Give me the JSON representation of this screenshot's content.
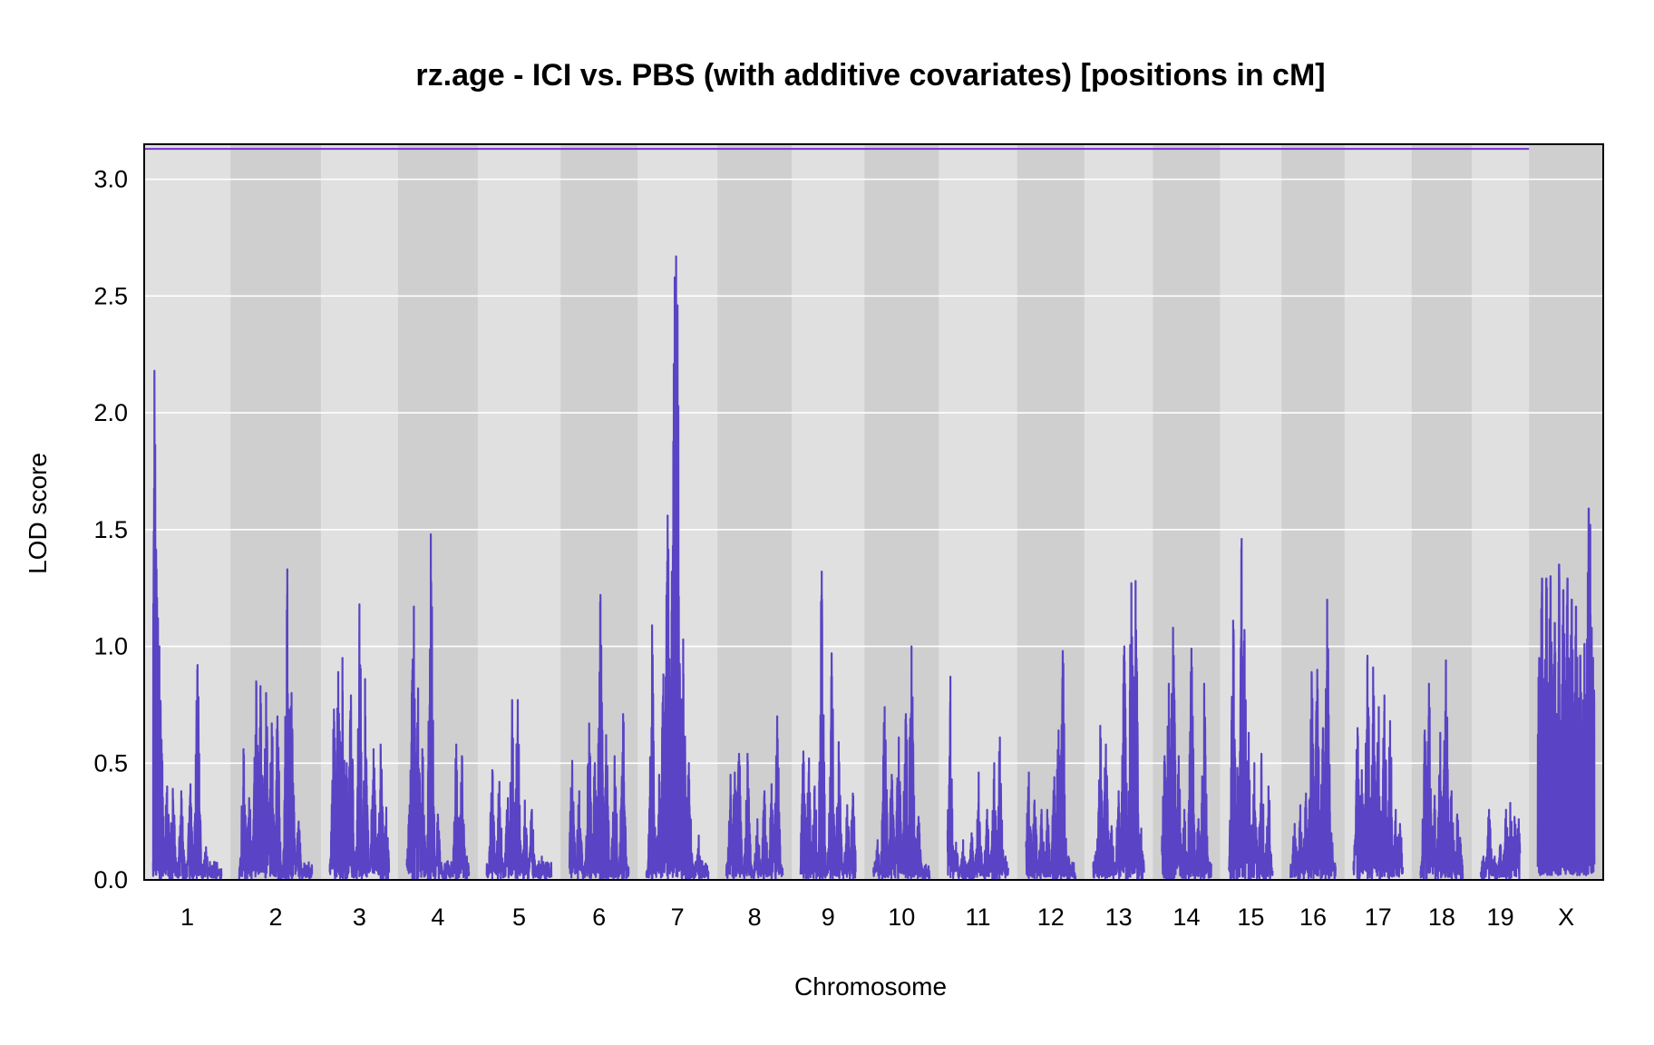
{
  "chart_data": {
    "type": "line",
    "title": "rz.age - ICI vs. PBS (with additive covariates) [positions in cM]",
    "xlabel": "Chromosome",
    "ylabel": "LOD score",
    "ylim": [
      0,
      3.15
    ],
    "yticks": [
      "0.0",
      "0.5",
      "1.0",
      "1.5",
      "2.0",
      "2.5",
      "3.0"
    ],
    "grid": true,
    "legend": "none",
    "colors": {
      "line": "#5a43c4",
      "threshold": "#7a2fd0",
      "band_light": "#e0e0e0",
      "band_dark": "#cfcfcf",
      "grid": "#ffffff"
    },
    "threshold_lod": 3.13,
    "chromosomes": [
      {
        "label": "1",
        "length_cM": 97,
        "peaks": [
          [
            2,
            2.18
          ],
          [
            3,
            1.8
          ],
          [
            5,
            1.33
          ],
          [
            7,
            1.12
          ],
          [
            9,
            1.0
          ],
          [
            12,
            0.6
          ],
          [
            20,
            0.4
          ],
          [
            28,
            0.39
          ],
          [
            40,
            0.38
          ],
          [
            53,
            0.41
          ],
          [
            63,
            0.92
          ],
          [
            75,
            0.14
          ],
          [
            88,
            0.06
          ]
        ]
      },
      {
        "label": "2",
        "length_cM": 103,
        "peaks": [
          [
            6,
            0.56
          ],
          [
            14,
            0.35
          ],
          [
            24,
            0.85
          ],
          [
            30,
            0.83
          ],
          [
            38,
            0.8
          ],
          [
            46,
            0.67
          ],
          [
            54,
            0.7
          ],
          [
            68,
            1.33
          ],
          [
            74,
            0.8
          ],
          [
            84,
            0.25
          ],
          [
            96,
            0.06
          ]
        ]
      },
      {
        "label": "3",
        "length_cM": 84,
        "peaks": [
          [
            6,
            0.73
          ],
          [
            12,
            0.89
          ],
          [
            18,
            0.95
          ],
          [
            24,
            0.5
          ],
          [
            30,
            0.79
          ],
          [
            42,
            1.18
          ],
          [
            50,
            0.86
          ],
          [
            62,
            0.56
          ],
          [
            72,
            0.58
          ],
          [
            80,
            0.31
          ]
        ]
      },
      {
        "label": "4",
        "length_cM": 88,
        "peaks": [
          [
            4,
            0.32
          ],
          [
            8,
            0.9
          ],
          [
            10,
            1.17
          ],
          [
            16,
            0.82
          ],
          [
            22,
            0.56
          ],
          [
            34,
            1.48
          ],
          [
            44,
            0.28
          ],
          [
            58,
            0.08
          ],
          [
            70,
            0.58
          ],
          [
            78,
            0.53
          ],
          [
            85,
            0.1
          ]
        ]
      },
      {
        "label": "5",
        "length_cM": 92,
        "peaks": [
          [
            8,
            0.47
          ],
          [
            18,
            0.42
          ],
          [
            30,
            0.35
          ],
          [
            36,
            0.77
          ],
          [
            44,
            0.77
          ],
          [
            54,
            0.34
          ],
          [
            64,
            0.3
          ],
          [
            78,
            0.1
          ],
          [
            88,
            0.03
          ]
        ]
      },
      {
        "label": "6",
        "length_cM": 84,
        "peaks": [
          [
            4,
            0.51
          ],
          [
            14,
            0.38
          ],
          [
            28,
            0.67
          ],
          [
            36,
            0.5
          ],
          [
            44,
            1.22
          ],
          [
            52,
            0.62
          ],
          [
            64,
            0.53
          ],
          [
            76,
            0.71
          ]
        ]
      },
      {
        "label": "7",
        "length_cM": 88,
        "peaks": [
          [
            8,
            1.09
          ],
          [
            18,
            0.45
          ],
          [
            24,
            0.88
          ],
          [
            30,
            1.56
          ],
          [
            36,
            1.32
          ],
          [
            40,
            2.58
          ],
          [
            42,
            2.67
          ],
          [
            44,
            2.46
          ],
          [
            52,
            1.03
          ],
          [
            60,
            0.5
          ],
          [
            74,
            0.19
          ],
          [
            84,
            0.05
          ]
        ]
      },
      {
        "label": "8",
        "length_cM": 80,
        "peaks": [
          [
            6,
            0.45
          ],
          [
            12,
            0.46
          ],
          [
            18,
            0.54
          ],
          [
            30,
            0.54
          ],
          [
            44,
            0.26
          ],
          [
            54,
            0.38
          ],
          [
            64,
            0.41
          ],
          [
            72,
            0.7
          ]
        ]
      },
      {
        "label": "9",
        "length_cM": 78,
        "peaks": [
          [
            4,
            0.55
          ],
          [
            12,
            0.52
          ],
          [
            20,
            0.4
          ],
          [
            30,
            1.32
          ],
          [
            44,
            0.97
          ],
          [
            54,
            0.59
          ],
          [
            66,
            0.32
          ],
          [
            74,
            0.37
          ]
        ]
      },
      {
        "label": "10",
        "length_cM": 80,
        "peaks": [
          [
            6,
            0.17
          ],
          [
            16,
            0.74
          ],
          [
            26,
            0.45
          ],
          [
            36,
            0.61
          ],
          [
            46,
            0.71
          ],
          [
            54,
            1.0
          ],
          [
            64,
            0.27
          ],
          [
            74,
            0.05
          ]
        ]
      },
      {
        "label": "11",
        "length_cM": 86,
        "peaks": [
          [
            4,
            0.87
          ],
          [
            12,
            0.16
          ],
          [
            22,
            0.17
          ],
          [
            34,
            0.2
          ],
          [
            44,
            0.46
          ],
          [
            56,
            0.3
          ],
          [
            66,
            0.5
          ],
          [
            74,
            0.61
          ],
          [
            82,
            0.1
          ]
        ]
      },
      {
        "label": "12",
        "length_cM": 70,
        "peaks": [
          [
            4,
            0.46
          ],
          [
            12,
            0.34
          ],
          [
            22,
            0.3
          ],
          [
            30,
            0.3
          ],
          [
            40,
            0.44
          ],
          [
            46,
            0.64
          ],
          [
            52,
            0.98
          ],
          [
            60,
            0.1
          ]
        ]
      },
      {
        "label": "13",
        "length_cM": 72,
        "peaks": [
          [
            4,
            0.12
          ],
          [
            10,
            0.66
          ],
          [
            18,
            0.58
          ],
          [
            26,
            0.23
          ],
          [
            36,
            0.38
          ],
          [
            44,
            1.0
          ],
          [
            54,
            1.27
          ],
          [
            60,
            1.28
          ],
          [
            68,
            0.22
          ]
        ]
      },
      {
        "label": "14",
        "length_cM": 70,
        "peaks": [
          [
            4,
            0.53
          ],
          [
            10,
            0.84
          ],
          [
            16,
            1.08
          ],
          [
            24,
            0.53
          ],
          [
            32,
            0.3
          ],
          [
            42,
            0.99
          ],
          [
            52,
            0.26
          ],
          [
            60,
            0.84
          ]
        ]
      },
      {
        "label": "15",
        "length_cM": 62,
        "peaks": [
          [
            6,
            1.11
          ],
          [
            12,
            0.48
          ],
          [
            18,
            1.46
          ],
          [
            22,
            1.07
          ],
          [
            28,
            0.63
          ],
          [
            36,
            0.5
          ],
          [
            46,
            0.54
          ],
          [
            56,
            0.4
          ]
        ]
      },
      {
        "label": "16",
        "length_cM": 64,
        "peaks": [
          [
            6,
            0.24
          ],
          [
            14,
            0.32
          ],
          [
            22,
            0.37
          ],
          [
            30,
            0.89
          ],
          [
            38,
            0.9
          ],
          [
            46,
            0.65
          ],
          [
            52,
            1.2
          ],
          [
            58,
            0.2
          ]
        ]
      },
      {
        "label": "17",
        "length_cM": 70,
        "peaks": [
          [
            6,
            0.65
          ],
          [
            12,
            0.47
          ],
          [
            20,
            0.96
          ],
          [
            28,
            0.91
          ],
          [
            36,
            0.74
          ],
          [
            44,
            0.79
          ],
          [
            52,
            0.68
          ],
          [
            60,
            0.3
          ],
          [
            66,
            0.24
          ]
        ]
      },
      {
        "label": "18",
        "length_cM": 60,
        "peaks": [
          [
            6,
            0.64
          ],
          [
            12,
            0.84
          ],
          [
            20,
            0.36
          ],
          [
            28,
            0.63
          ],
          [
            36,
            0.94
          ],
          [
            44,
            0.38
          ],
          [
            52,
            0.28
          ],
          [
            56,
            0.18
          ]
        ]
      },
      {
        "label": "19",
        "length_cM": 56,
        "peaks": [
          [
            4,
            0.1
          ],
          [
            12,
            0.3
          ],
          [
            20,
            0.1
          ],
          [
            28,
            0.15
          ],
          [
            36,
            0.3
          ],
          [
            42,
            0.33
          ],
          [
            48,
            0.27
          ],
          [
            54,
            0.26
          ]
        ]
      },
      {
        "label": "X",
        "length_cM": 80,
        "peaks": [
          [
            2,
            0.95
          ],
          [
            6,
            1.29
          ],
          [
            12,
            1.29
          ],
          [
            18,
            1.3
          ],
          [
            24,
            1.1
          ],
          [
            30,
            1.35
          ],
          [
            36,
            1.24
          ],
          [
            42,
            1.29
          ],
          [
            48,
            1.2
          ],
          [
            54,
            1.17
          ],
          [
            60,
            0.96
          ],
          [
            66,
            1.01
          ],
          [
            72,
            1.59
          ],
          [
            74,
            1.52
          ],
          [
            78,
            0.95
          ]
        ]
      }
    ]
  }
}
